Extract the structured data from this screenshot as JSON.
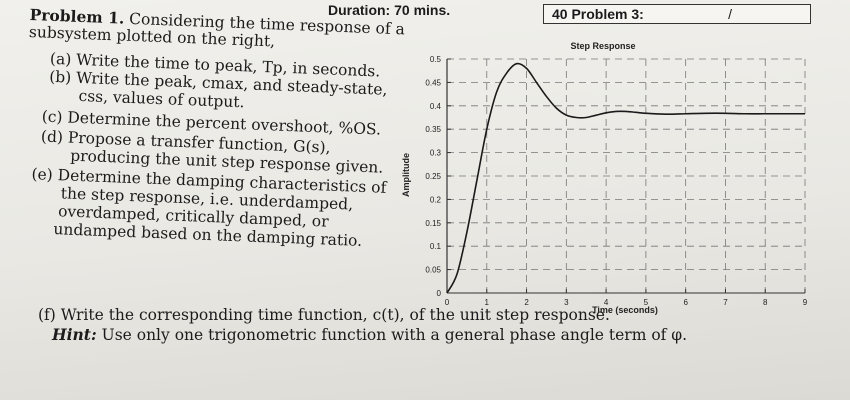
{
  "header": {
    "duration": "Duration: 70 mins.",
    "problem_box": "40 Problem 3:",
    "slash": "/"
  },
  "problem": {
    "title": "Problem 1.",
    "intro_1": "Considering the time response of a",
    "intro_2": "subsystem plotted on the right,",
    "a": "(a) Write the time to peak, Tp, in seconds.",
    "b_1": "(b) Write the peak, cmax, and steady-state,",
    "b_2": "css, values of output.",
    "c": "(c) Determine the percent overshoot, %OS.",
    "d_1": "(d) Propose a transfer function, G(s),",
    "d_2": "producing the unit step response given.",
    "e_1": "(e) Determine the damping characteristics of",
    "e_2": "the step response, i.e. underdamped,",
    "e_3": "overdamped, critically damped, or",
    "e_4": "undamped based on the damping ratio.",
    "f": "(f) Write the corresponding time function, c(t), of the unit step response.",
    "hint_label": "Hint:",
    "hint_text": "Use only one trigonometric function with a general phase angle term of φ."
  },
  "chart_data": {
    "type": "line",
    "title": "Step Response",
    "xlabel": "Time (seconds)",
    "ylabel": "Amplitude",
    "xlim": [
      0,
      9
    ],
    "ylim": [
      0,
      0.5
    ],
    "x_ticks": [
      "0",
      "1",
      "2",
      "3",
      "4",
      "5",
      "6",
      "7",
      "8",
      "9"
    ],
    "y_ticks": [
      "0",
      "0.05",
      "0.1",
      "0.15",
      "0.2",
      "0.25",
      "0.3",
      "0.35",
      "0.4",
      "0.45",
      "0.5"
    ],
    "grid": true,
    "x": [
      0,
      0.25,
      0.5,
      0.75,
      1.0,
      1.25,
      1.5,
      1.75,
      2.0,
      2.25,
      2.5,
      2.75,
      3.0,
      3.25,
      3.5,
      3.75,
      4.0,
      4.25,
      4.5,
      4.75,
      5.0,
      5.5,
      6.0,
      6.5,
      7.0,
      7.5,
      8.0,
      8.5,
      9.0
    ],
    "y": [
      0,
      0.04,
      0.13,
      0.24,
      0.35,
      0.43,
      0.47,
      0.49,
      0.48,
      0.45,
      0.42,
      0.395,
      0.38,
      0.375,
      0.375,
      0.38,
      0.385,
      0.388,
      0.388,
      0.386,
      0.384,
      0.382,
      0.383,
      0.384,
      0.384,
      0.383,
      0.383,
      0.383,
      0.383
    ],
    "color": "#1a1a1a"
  }
}
